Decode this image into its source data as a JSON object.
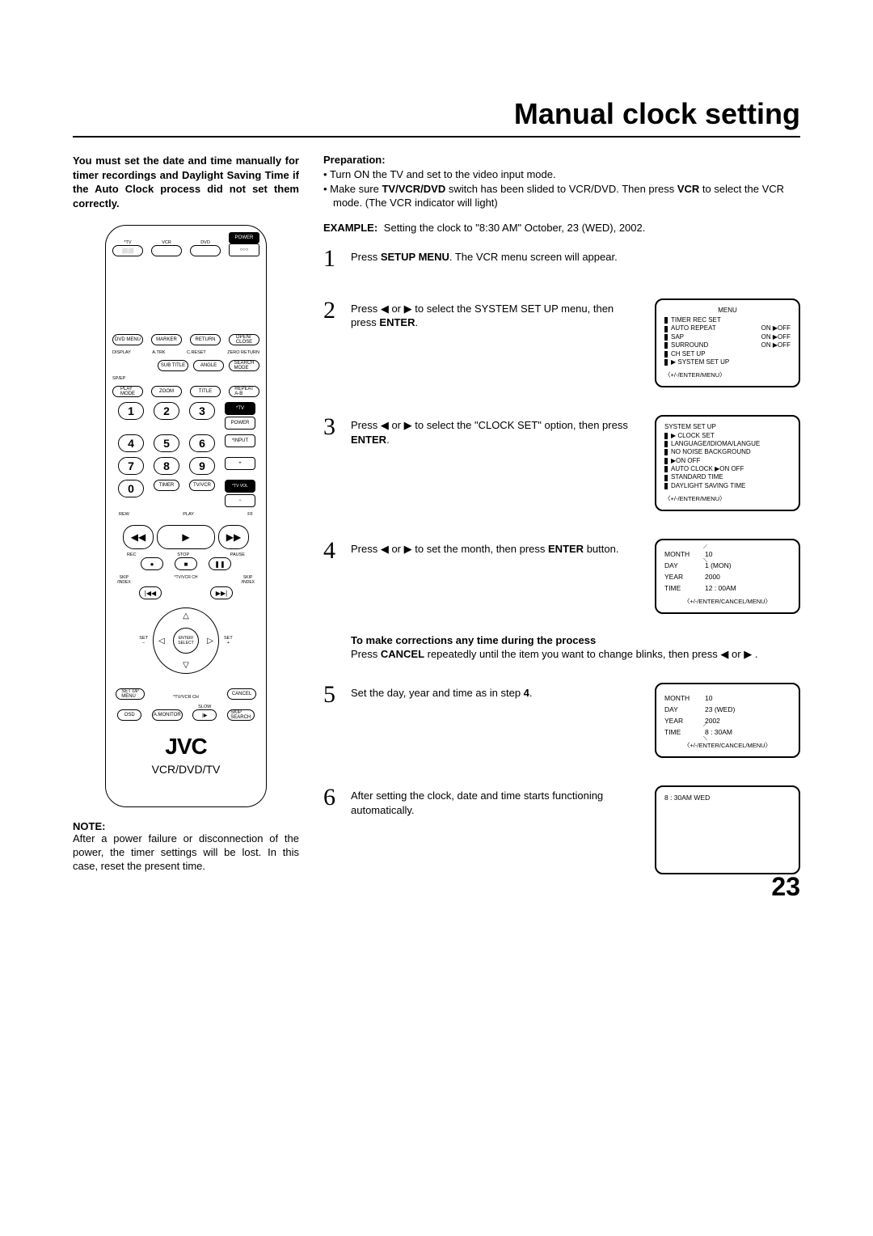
{
  "title": "Manual clock setting",
  "intro": "You must set the date and time manually for timer recordings and Daylight Saving Time if the Auto Clock process did not set them correctly.",
  "remote": {
    "top_labels": [
      "*TV",
      "VCR",
      "DVD",
      "POWER"
    ],
    "row2_labels": [
      "DVD MENU",
      "MARKER",
      "RETURN",
      "OPEN/\nCLOSE"
    ],
    "row3_labels": [
      "DISPLAY",
      "A.TRK",
      "C.RESET",
      "ZERO RETURN"
    ],
    "row3b": [
      "SUB TITLE",
      "ANGLE",
      "SEARCH\nMODE"
    ],
    "row4_labels": [
      "SP/EP",
      "",
      "",
      ""
    ],
    "row4b": [
      "PLAY\nMODE",
      "ZOOM",
      "TITLE",
      "REPEAT\nA-B"
    ],
    "side_labels": [
      "*TV",
      "POWER",
      "*INPUT",
      "+",
      "*TV VOL",
      "−"
    ],
    "num_labels": [
      "1",
      "2",
      "3",
      "4",
      "5",
      "6",
      "7",
      "8",
      "9",
      "0"
    ],
    "bottom_btns": [
      "TIMER",
      "TV/VCR"
    ],
    "transport_labels": [
      "REW",
      "PLAY",
      "FF"
    ],
    "rec_stop": [
      "REC",
      "STOP",
      "PAUSE"
    ],
    "skip_labels": [
      "SKIP\n/INDEX",
      "*TV/VCR CH",
      "SKIP\n/INDEX"
    ],
    "nav_labels": [
      "SET\n−",
      "ENTER/\nSELECT",
      "SET\n+"
    ],
    "setup_row": [
      "SET UP\nMENU",
      "CANCEL"
    ],
    "bottom_row": [
      "OSD",
      "A.MONITOR",
      "SLOW",
      "SKIP\nSEARCH"
    ],
    "ch_label": "*TV/VCR CH",
    "brand": "JVC",
    "brand_sub": "VCR/DVD/TV"
  },
  "note_head": "NOTE:",
  "note_body": "After a power failure or disconnection of the power, the timer settings will be lost. In this case, reset the present time.",
  "prep_head": "Preparation:",
  "prep_bullets": [
    "Turn ON the TV and set to the video input mode.",
    "Make sure <b>TV/VCR/DVD</b> switch has been slided to VCR/DVD. Then press <b>VCR</b> to select the VCR mode. (The VCR indicator will light)"
  ],
  "example_prefix": "EXAMPLE:",
  "example_text": "Setting the clock to \"8:30 AM\" October, 23 (WED), 2002.",
  "steps": {
    "s1": "Press <b>SETUP MENU</b>. The VCR menu screen will appear.",
    "s2": "Press <span class='tri-l'></span> or <span class='tri-r'></span> to select the SYSTEM SET UP menu, then press <b>ENTER</b>.",
    "s3": "Press <span class='tri-l'></span> or <span class='tri-r'></span> to select the \"CLOCK SET\" option, then press <b>ENTER</b>.",
    "s4": "Press <span class='tri-l'></span> or <span class='tri-r'></span> to set the month, then press <b>ENTER</b> button.",
    "corr_head": "To make corrections any time during the process",
    "corr_body": "Press <b>CANCEL</b> repeatedly until the item you want to change blinks, then press <span class='tri-l'></span> or <span class='tri-r'></span> .",
    "s5": "Set the day, year and time as in step <b>4</b>.",
    "s6": "After setting the clock, date and time starts functioning automatically."
  },
  "screen2": {
    "title": "MENU",
    "items": [
      "TIMER REC SET",
      "AUTO REPEAT",
      "SAP",
      "SURROUND",
      "CH SET UP",
      "SYSTEM SET UP"
    ],
    "onoff": [
      "",
      "ON ▶OFF",
      "ON ▶OFF",
      "ON ▶OFF",
      "",
      ""
    ],
    "hint": "〈+/-/ENTER/MENU〉"
  },
  "screen3": {
    "title": "SYSTEM SET UP",
    "items": [
      "CLOCK SET",
      "LANGUAGE/IDIOMA/LANGUE",
      "NO NOISE BACKGROUND",
      "   ▶ON   OFF",
      "AUTO CLOCK ▶ON   OFF",
      "STANDARD TIME",
      "DAYLIGHT SAVING TIME"
    ],
    "hint": "〈+/-/ENTER/MENU〉"
  },
  "screen4": {
    "rows": [
      [
        "MONTH",
        "10"
      ],
      [
        "DAY",
        "1 (MON)"
      ],
      [
        "YEAR",
        "2000"
      ],
      [
        "TIME",
        "12 : 00AM"
      ]
    ],
    "hint": "〈+/-/ENTER/CANCEL/MENU〉",
    "cursor_row": 0
  },
  "screen5": {
    "rows": [
      [
        "MONTH",
        "10"
      ],
      [
        "DAY",
        "23 (WED)"
      ],
      [
        "YEAR",
        "2002"
      ],
      [
        "TIME",
        "8 : 30AM"
      ]
    ],
    "hint": "〈+/-/ENTER/CANCEL/MENU〉",
    "cursor_row": 3
  },
  "screen6": {
    "line": "8 : 30AM  WED"
  },
  "pagenum": "23"
}
